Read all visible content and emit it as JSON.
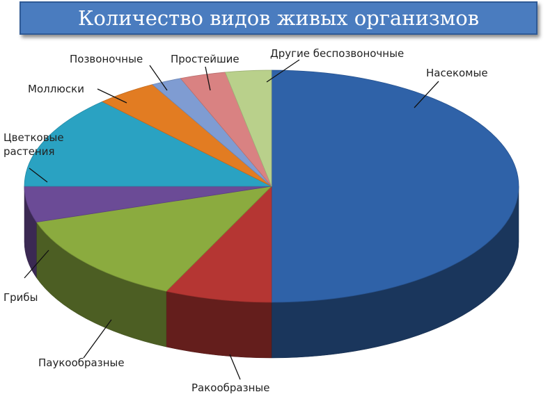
{
  "chart_data": {
    "type": "pie",
    "title": "Количество видов живых организмов",
    "categories": [
      "Насекомые",
      "Ракообразные",
      "Паукообразные",
      "Грибы",
      "Цветковые растения",
      "Моллюски",
      "Позвоночные",
      "Простейшие",
      "Другие беспозвоночные"
    ],
    "values": [
      50,
      7,
      13,
      5,
      13,
      4,
      2,
      3,
      3
    ],
    "colors": [
      "#2f62a8",
      "#b53633",
      "#8bab3f",
      "#6b4b96",
      "#2aa2c2",
      "#e27c22",
      "#7f9cd2",
      "#d98282",
      "#b9d08b"
    ]
  }
}
